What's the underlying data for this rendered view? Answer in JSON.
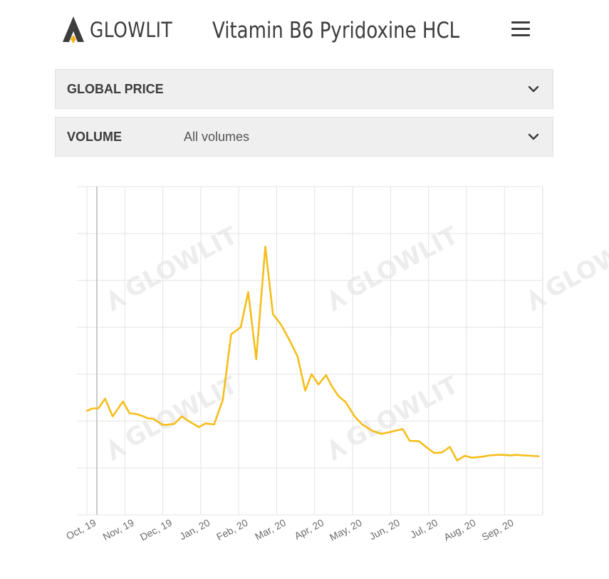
{
  "header": {
    "logo_text": "GLOWLIT",
    "title": "Vitamin B6 Pyridoxine HCL",
    "menu_icon": "hamburger-menu-icon"
  },
  "filters": {
    "price": {
      "label": "GLOBAL PRICE",
      "value": ""
    },
    "volume": {
      "label": "VOLUME",
      "value": "All volumes"
    }
  },
  "watermark_text": "GLOWLIT",
  "colors": {
    "line": "#f5be1b",
    "grid": "#e4e4e4",
    "logo_accent": "#f3b51a",
    "logo_dark": "#3d3d3d"
  },
  "chart_data": {
    "type": "line",
    "title": "",
    "xlabel": "",
    "ylabel": "",
    "grid": true,
    "y_tick_labels_shown": false,
    "x_tick_labels": [
      "Oct, 19",
      "Nov, 19",
      "Dec, 19",
      "Jan, 20",
      "Feb, 20",
      "Mar, 20",
      "Apr, 20",
      "May, 20",
      "Jun, 20",
      "Jul, 20",
      "Aug, 20",
      "Sep, 20"
    ],
    "x_range": [
      0,
      12
    ],
    "ylim": [
      0,
      7
    ],
    "series": [
      {
        "x": [
          0,
          0.15,
          0.3,
          0.48,
          0.68,
          0.95,
          1.12,
          1.3,
          1.5,
          1.6,
          1.75,
          2.0,
          2.08,
          2.3,
          2.5,
          2.7,
          2.95,
          3.12,
          3.35,
          3.58,
          3.8,
          4.05,
          4.25,
          4.46,
          4.7,
          4.9,
          5.12,
          5.32,
          5.55,
          5.75,
          5.92,
          6.1,
          6.3,
          6.44,
          6.62,
          6.82,
          7.05,
          7.25,
          7.5,
          7.75,
          7.95,
          8.15,
          8.32,
          8.5,
          8.75,
          8.98,
          9.15,
          9.35,
          9.56,
          9.75,
          9.95,
          10.15,
          10.4,
          10.62,
          10.82,
          10.98,
          11.15,
          11.32,
          11.5,
          11.72,
          11.9
        ],
        "values": [
          2.22,
          2.27,
          2.27,
          2.48,
          2.1,
          2.42,
          2.17,
          2.15,
          2.1,
          2.06,
          2.05,
          1.92,
          1.92,
          1.94,
          2.1,
          1.99,
          1.87,
          1.95,
          1.93,
          2.45,
          3.85,
          4.0,
          4.75,
          3.32,
          5.72,
          4.28,
          4.05,
          3.75,
          3.38,
          2.65,
          3.0,
          2.78,
          2.98,
          2.76,
          2.54,
          2.4,
          2.1,
          1.93,
          1.8,
          1.73,
          1.76,
          1.8,
          1.83,
          1.58,
          1.57,
          1.42,
          1.32,
          1.33,
          1.45,
          1.16,
          1.26,
          1.22,
          1.24,
          1.27,
          1.28,
          1.28,
          1.27,
          1.28,
          1.27,
          1.26,
          1.25
        ]
      }
    ]
  }
}
